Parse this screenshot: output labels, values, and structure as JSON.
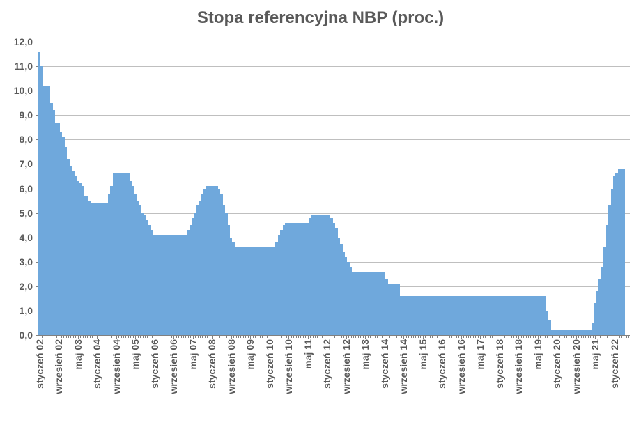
{
  "chart": {
    "type": "bar",
    "title": "Stopa referencyjna NBP (proc.)",
    "title_fontsize": 24,
    "title_color": "#595959",
    "background_color": "#ffffff",
    "plot_background": "#ffffff",
    "bar_color": "#6fa8dc",
    "grid_color": "#bfbfbf",
    "axis_color": "#808080",
    "label_color": "#595959",
    "label_fontsize": 14,
    "label_fontweight": "bold",
    "ylim": [
      0.0,
      12.0
    ],
    "ytick_step": 1.0,
    "ytick_labels": [
      "0,0",
      "1,0",
      "2,0",
      "3,0",
      "4,0",
      "5,0",
      "6,0",
      "7,0",
      "8,0",
      "9,0",
      "10,0",
      "11,0",
      "12,0"
    ],
    "x_label_interval": 8,
    "x_labels": [
      "styczeń 02",
      "wrzesień 02",
      "maj 03",
      "styczeń 04",
      "wrzesień 04",
      "maj 05",
      "styczeń 06",
      "wrzesień 06",
      "maj 07",
      "styczeń 08",
      "wrzesień 08",
      "maj 09",
      "styczeń 10",
      "wrzesień 10",
      "maj 11",
      "styczeń 12",
      "wrzesień 12",
      "maj 13",
      "styczeń 14",
      "wrzesień 14",
      "maj 15",
      "styczeń 16",
      "wrzesień 16",
      "maj 17",
      "styczeń 18",
      "wrzesień 18",
      "maj 19",
      "styczeń 20",
      "wrzesień 20",
      "maj 21",
      "styczeń 22",
      "wrzesień 22"
    ],
    "values": [
      11.6,
      11.0,
      10.2,
      10.2,
      10.2,
      9.5,
      9.2,
      8.7,
      8.7,
      8.3,
      8.1,
      7.7,
      7.2,
      6.9,
      6.7,
      6.5,
      6.3,
      6.2,
      6.1,
      5.7,
      5.7,
      5.5,
      5.4,
      5.4,
      5.4,
      5.4,
      5.4,
      5.4,
      5.4,
      5.8,
      6.1,
      6.6,
      6.6,
      6.6,
      6.6,
      6.6,
      6.6,
      6.6,
      6.3,
      6.1,
      5.8,
      5.5,
      5.3,
      5.0,
      4.9,
      4.7,
      4.5,
      4.3,
      4.1,
      4.1,
      4.1,
      4.1,
      4.1,
      4.1,
      4.1,
      4.1,
      4.1,
      4.1,
      4.1,
      4.1,
      4.1,
      4.1,
      4.3,
      4.5,
      4.8,
      5.0,
      5.3,
      5.5,
      5.8,
      6.0,
      6.1,
      6.1,
      6.1,
      6.1,
      6.1,
      6.0,
      5.8,
      5.3,
      5.0,
      4.5,
      4.0,
      3.8,
      3.6,
      3.6,
      3.6,
      3.6,
      3.6,
      3.6,
      3.6,
      3.6,
      3.6,
      3.6,
      3.6,
      3.6,
      3.6,
      3.6,
      3.6,
      3.6,
      3.6,
      3.8,
      4.1,
      4.3,
      4.5,
      4.6,
      4.6,
      4.6,
      4.6,
      4.6,
      4.6,
      4.6,
      4.6,
      4.6,
      4.6,
      4.8,
      4.9,
      4.9,
      4.9,
      4.9,
      4.9,
      4.9,
      4.9,
      4.9,
      4.8,
      4.6,
      4.4,
      4.0,
      3.7,
      3.4,
      3.2,
      3.0,
      2.8,
      2.6,
      2.6,
      2.6,
      2.6,
      2.6,
      2.6,
      2.6,
      2.6,
      2.6,
      2.6,
      2.6,
      2.6,
      2.6,
      2.6,
      2.3,
      2.1,
      2.1,
      2.1,
      2.1,
      2.1,
      1.6,
      1.6,
      1.6,
      1.6,
      1.6,
      1.6,
      1.6,
      1.6,
      1.6,
      1.6,
      1.6,
      1.6,
      1.6,
      1.6,
      1.6,
      1.6,
      1.6,
      1.6,
      1.6,
      1.6,
      1.6,
      1.6,
      1.6,
      1.6,
      1.6,
      1.6,
      1.6,
      1.6,
      1.6,
      1.6,
      1.6,
      1.6,
      1.6,
      1.6,
      1.6,
      1.6,
      1.6,
      1.6,
      1.6,
      1.6,
      1.6,
      1.6,
      1.6,
      1.6,
      1.6,
      1.6,
      1.6,
      1.6,
      1.6,
      1.6,
      1.6,
      1.6,
      1.6,
      1.6,
      1.6,
      1.6,
      1.6,
      1.6,
      1.6,
      1.6,
      1.6,
      1.0,
      0.6,
      0.2,
      0.2,
      0.2,
      0.2,
      0.2,
      0.2,
      0.2,
      0.2,
      0.2,
      0.2,
      0.2,
      0.2,
      0.2,
      0.2,
      0.2,
      0.2,
      0.2,
      0.5,
      1.3,
      1.8,
      2.3,
      2.8,
      3.6,
      4.5,
      5.3,
      6.0,
      6.5,
      6.6,
      6.8,
      6.8,
      6.8,
      "",
      ""
    ]
  }
}
